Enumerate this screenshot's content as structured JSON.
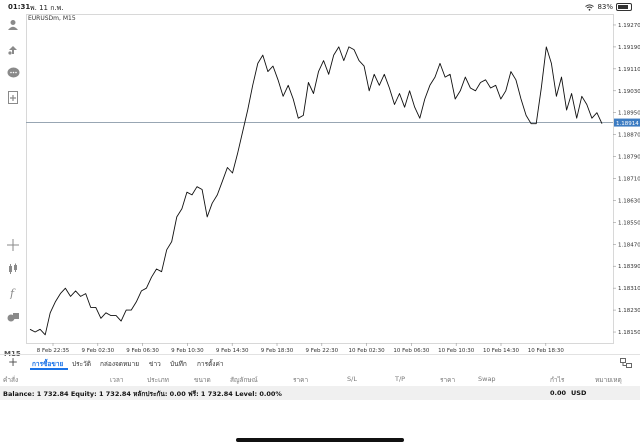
{
  "status_bar": {
    "time": "01:31",
    "date": "พ. 11 ก.พ.",
    "battery_text": "83%",
    "battery_level": 0.83
  },
  "chart": {
    "symbol": "EURUSDm, M15",
    "current_price": "1.18914",
    "price_axis": [
      "1.19270",
      "1.19190",
      "1.19110",
      "1.19030",
      "1.18950",
      "1.18870",
      "1.18790",
      "1.18710",
      "1.18630",
      "1.18550",
      "1.18470",
      "1.18390",
      "1.18310",
      "1.18230",
      "1.18150"
    ],
    "time_axis": [
      "8 Feb 22:35",
      "9 Feb 02:30",
      "9 Feb 06:30",
      "9 Feb 10:30",
      "9 Feb 14:30",
      "9 Feb 18:30",
      "9 Feb 22:30",
      "10 Feb 02:30",
      "10 Feb 06:30",
      "10 Feb 10:30",
      "10 Feb 14:30",
      "10 Feb 18:30"
    ],
    "colors": {
      "line": "#111111",
      "price_line": "#8a9aa8",
      "price_badge": "#3d7cc2",
      "grid": "#e6e6e6"
    }
  },
  "chart_data": {
    "type": "line",
    "symbol": "EURUSDm",
    "timeframe": "M15",
    "ylim": [
      1.1811,
      1.1931
    ],
    "grid": false,
    "values": [
      1.1816,
      1.1815,
      1.1816,
      1.1814,
      1.1822,
      1.1826,
      1.1829,
      1.1831,
      1.1828,
      1.183,
      1.1828,
      1.1829,
      1.1824,
      1.1824,
      1.182,
      1.1822,
      1.1821,
      1.1821,
      1.1819,
      1.1823,
      1.1823,
      1.1826,
      1.183,
      1.1831,
      1.1835,
      1.1838,
      1.1837,
      1.1845,
      1.1848,
      1.1857,
      1.186,
      1.1866,
      1.1865,
      1.1868,
      1.1867,
      1.1857,
      1.1862,
      1.1865,
      1.187,
      1.1875,
      1.1873,
      1.188,
      1.1888,
      1.1896,
      1.1905,
      1.1913,
      1.1916,
      1.191,
      1.1912,
      1.1907,
      1.1901,
      1.1905,
      1.19,
      1.1893,
      1.1894,
      1.1906,
      1.1902,
      1.191,
      1.1914,
      1.1909,
      1.1916,
      1.1919,
      1.1914,
      1.1919,
      1.1918,
      1.1914,
      1.1912,
      1.1903,
      1.1909,
      1.1905,
      1.1909,
      1.1904,
      1.1898,
      1.1902,
      1.1897,
      1.1903,
      1.1897,
      1.1893,
      1.19,
      1.1905,
      1.1908,
      1.1913,
      1.1908,
      1.1909,
      1.19,
      1.1903,
      1.1908,
      1.1904,
      1.1903,
      1.1906,
      1.1907,
      1.1904,
      1.1905,
      1.19,
      1.1903,
      1.191,
      1.1907,
      1.19,
      1.1894,
      1.1891,
      1.1891,
      1.1904,
      1.1919,
      1.1913,
      1.1901,
      1.1908,
      1.1896,
      1.1902,
      1.1893,
      1.1901,
      1.1898,
      1.1893,
      1.1895,
      1.1891
    ]
  },
  "toolbar": {
    "items": [
      {
        "name": "user-icon"
      },
      {
        "name": "market-watch-icon"
      },
      {
        "name": "chat-icon"
      },
      {
        "name": "new-order-icon"
      },
      {
        "name": "crosshair-icon"
      },
      {
        "name": "chart-type-icon"
      },
      {
        "name": "indicator-icon"
      },
      {
        "name": "objects-icon"
      }
    ],
    "timeframe": "M15"
  },
  "tabs": {
    "add": "+",
    "items": [
      "การซื้อขาย",
      "ประวัติ",
      "กล่องจดหมาย",
      "ข่าว",
      "บันทึก",
      "การตั้งค่า"
    ],
    "active": 0
  },
  "columns": [
    "คำสั่ง",
    "เวลา",
    "ประเภท",
    "ขนาด",
    "สัญลักษณ์",
    "ราคา",
    "S/L",
    "T/P",
    "ราคา",
    "Swap",
    "กำไร",
    "หมายเหตุ"
  ],
  "balance": {
    "text": "Balance: 1 732.84 Equity: 1 732.84 หลักประกัน: 0.00 ฟรี: 1 732.84 Level: 0.00%",
    "profit": "0.00",
    "currency": "USD"
  }
}
